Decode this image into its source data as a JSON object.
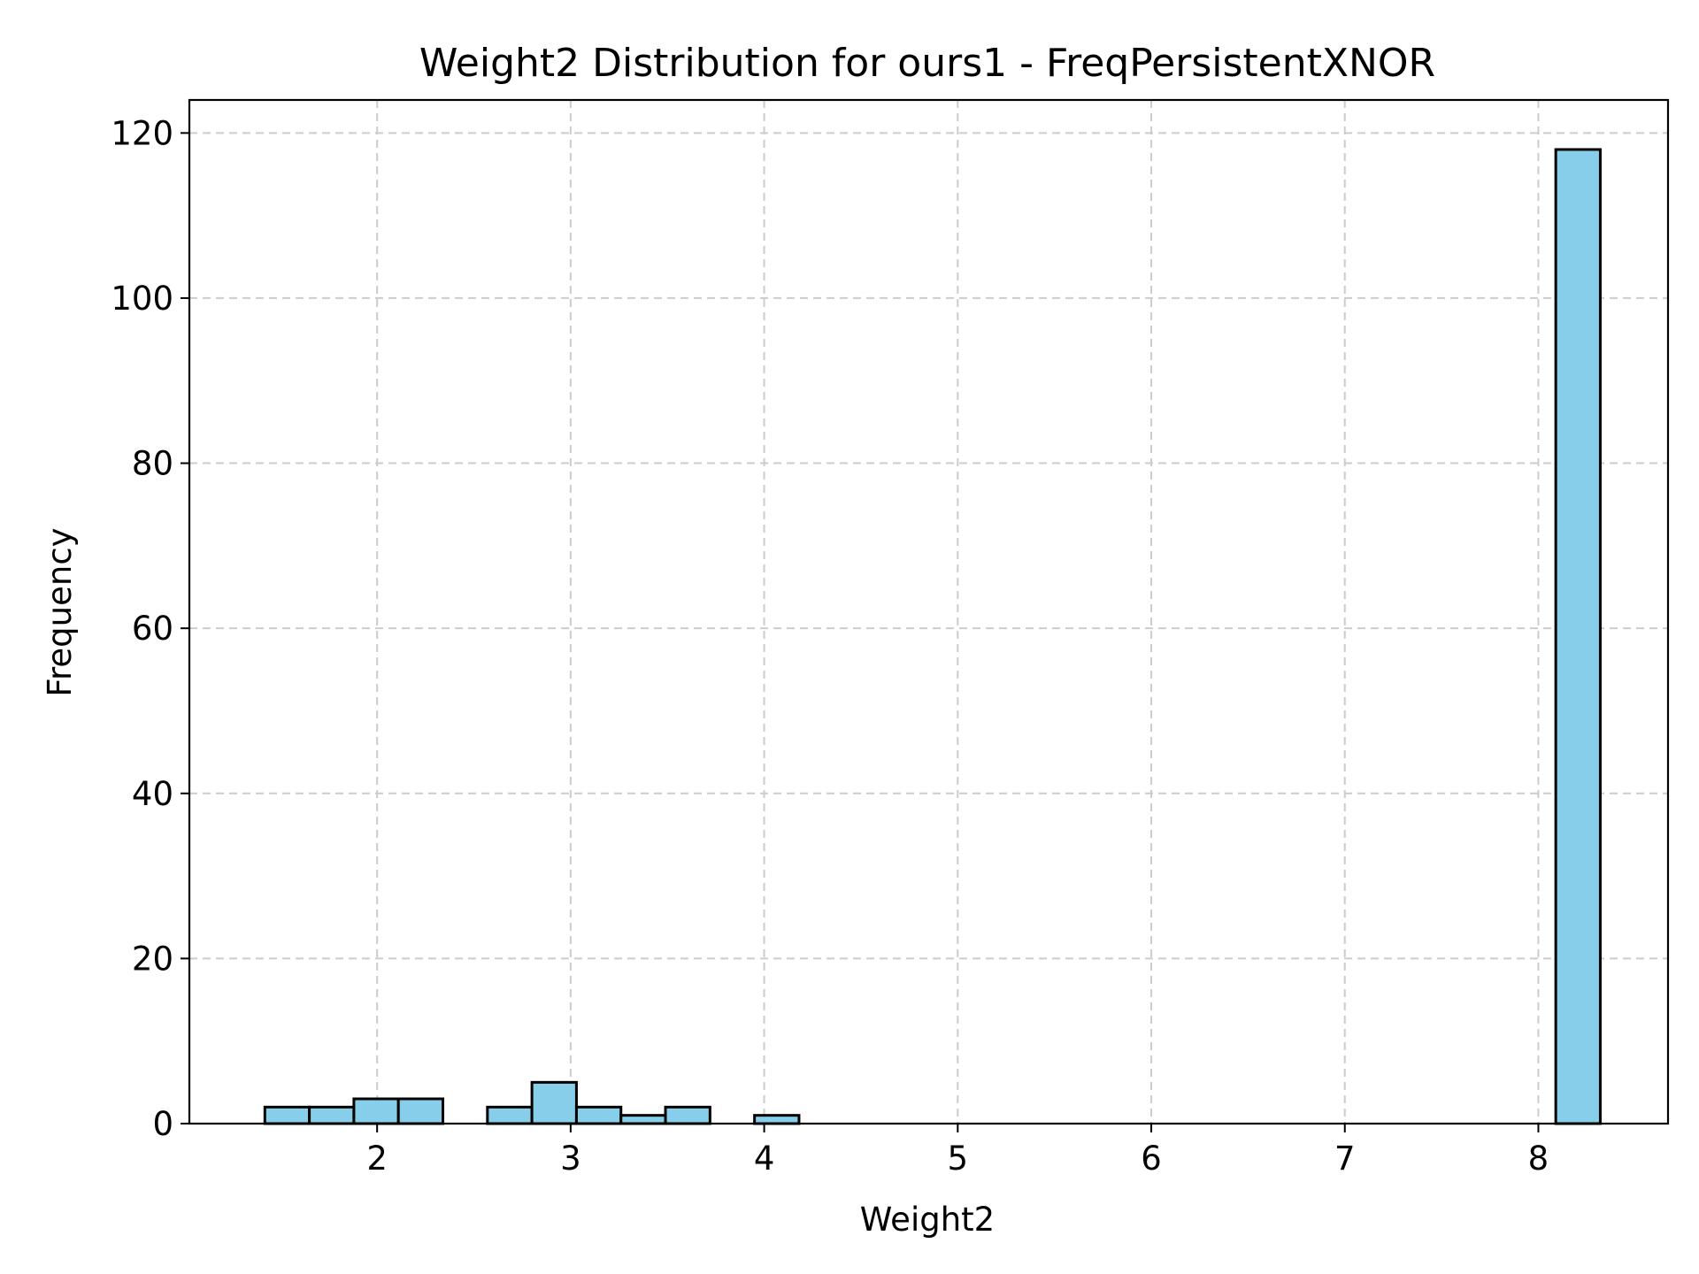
{
  "chart_data": {
    "type": "bar",
    "title": "Weight2 Distribution for ours1 - FreqPersistentXNOR",
    "xlabel": "Weight2",
    "ylabel": "Frequency",
    "xlim": [
      1.03,
      8.67
    ],
    "ylim": [
      0,
      124
    ],
    "xticks": [
      2,
      3,
      4,
      5,
      6,
      7,
      8
    ],
    "yticks": [
      0,
      20,
      40,
      60,
      80,
      100,
      120
    ],
    "grid": true,
    "bar_color": "#87ceeb",
    "edge_color": "#000000",
    "bins": [
      {
        "x0": 1.42,
        "x1": 1.65,
        "count": 2
      },
      {
        "x0": 1.65,
        "x1": 1.88,
        "count": 2
      },
      {
        "x0": 1.88,
        "x1": 2.11,
        "count": 3
      },
      {
        "x0": 2.11,
        "x1": 2.34,
        "count": 3
      },
      {
        "x0": 2.57,
        "x1": 2.8,
        "count": 2
      },
      {
        "x0": 2.8,
        "x1": 3.03,
        "count": 5
      },
      {
        "x0": 3.03,
        "x1": 3.26,
        "count": 2
      },
      {
        "x0": 3.26,
        "x1": 3.49,
        "count": 1
      },
      {
        "x0": 3.49,
        "x1": 3.72,
        "count": 2
      },
      {
        "x0": 3.95,
        "x1": 4.18,
        "count": 1
      },
      {
        "x0": 8.09,
        "x1": 8.32,
        "count": 118
      }
    ]
  }
}
